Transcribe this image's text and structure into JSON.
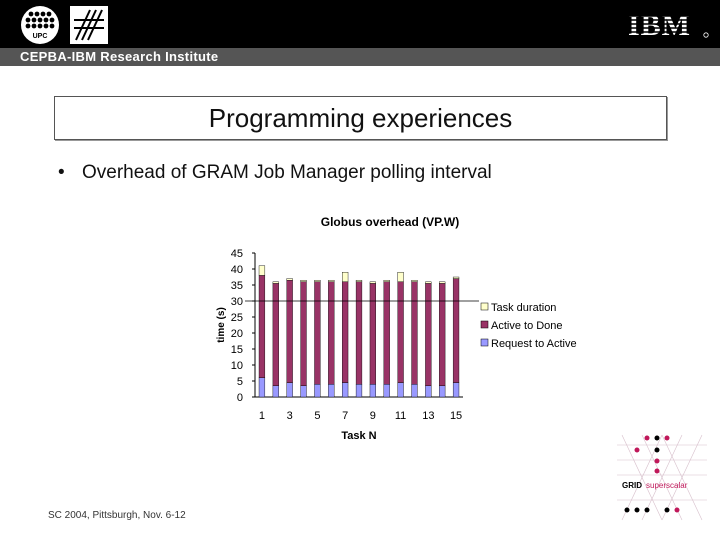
{
  "header": {
    "institute": "CEPBA-IBM Research Institute",
    "logo_upc": "UPC",
    "logo_ibm": "IBM"
  },
  "slide": {
    "title": "Programming experiences",
    "bullet_symbol": "•",
    "bullet_text": "Overhead of GRAM Job Manager polling interval"
  },
  "footer": {
    "text": "SC 2004, Pittsburgh, Nov. 6-12"
  },
  "grid_logo": {
    "grid": "GRID",
    "superscalar": "superscalar"
  },
  "colors": {
    "request_to_active": "#9999ff",
    "active_to_done": "#993366",
    "task_duration": "#ffffcc",
    "grid_accent": "#c0185a"
  },
  "chart_data": {
    "type": "bar",
    "stacked": true,
    "title": "Globus overhead (VP.W)",
    "xlabel": "Task N",
    "ylabel": "time (s)",
    "ylim": [
      0,
      45
    ],
    "yticks": [
      0,
      5,
      10,
      15,
      20,
      25,
      30,
      35,
      40,
      45
    ],
    "x": [
      1,
      2,
      3,
      4,
      5,
      6,
      7,
      8,
      9,
      10,
      11,
      12,
      13,
      14,
      15
    ],
    "xtick_labels": [
      "1",
      "3",
      "5",
      "7",
      "9",
      "11",
      "13",
      "15"
    ],
    "grid": false,
    "reference_line": 30,
    "legend_position": "right",
    "series": [
      {
        "name": "Request to Active",
        "color": "#9999ff",
        "values": [
          6,
          3.5,
          4.5,
          3.5,
          4,
          4,
          4.5,
          4,
          4,
          4,
          4.5,
          4,
          3.5,
          3.5,
          4.5
        ]
      },
      {
        "name": "Active to Done",
        "color": "#993366",
        "values": [
          32,
          32,
          32,
          32.5,
          32,
          32,
          31.5,
          32,
          31.5,
          32,
          31.5,
          32,
          32,
          32,
          32.5
        ]
      },
      {
        "name": "Task duration",
        "color": "#ffffcc",
        "values": [
          3,
          0.5,
          0.5,
          0.5,
          0.5,
          0.5,
          3,
          0.5,
          0.5,
          0.5,
          3,
          0.5,
          0.5,
          0.5,
          0.5
        ]
      }
    ],
    "legend_order": [
      "Task duration",
      "Active to Done",
      "Request to Active"
    ]
  }
}
